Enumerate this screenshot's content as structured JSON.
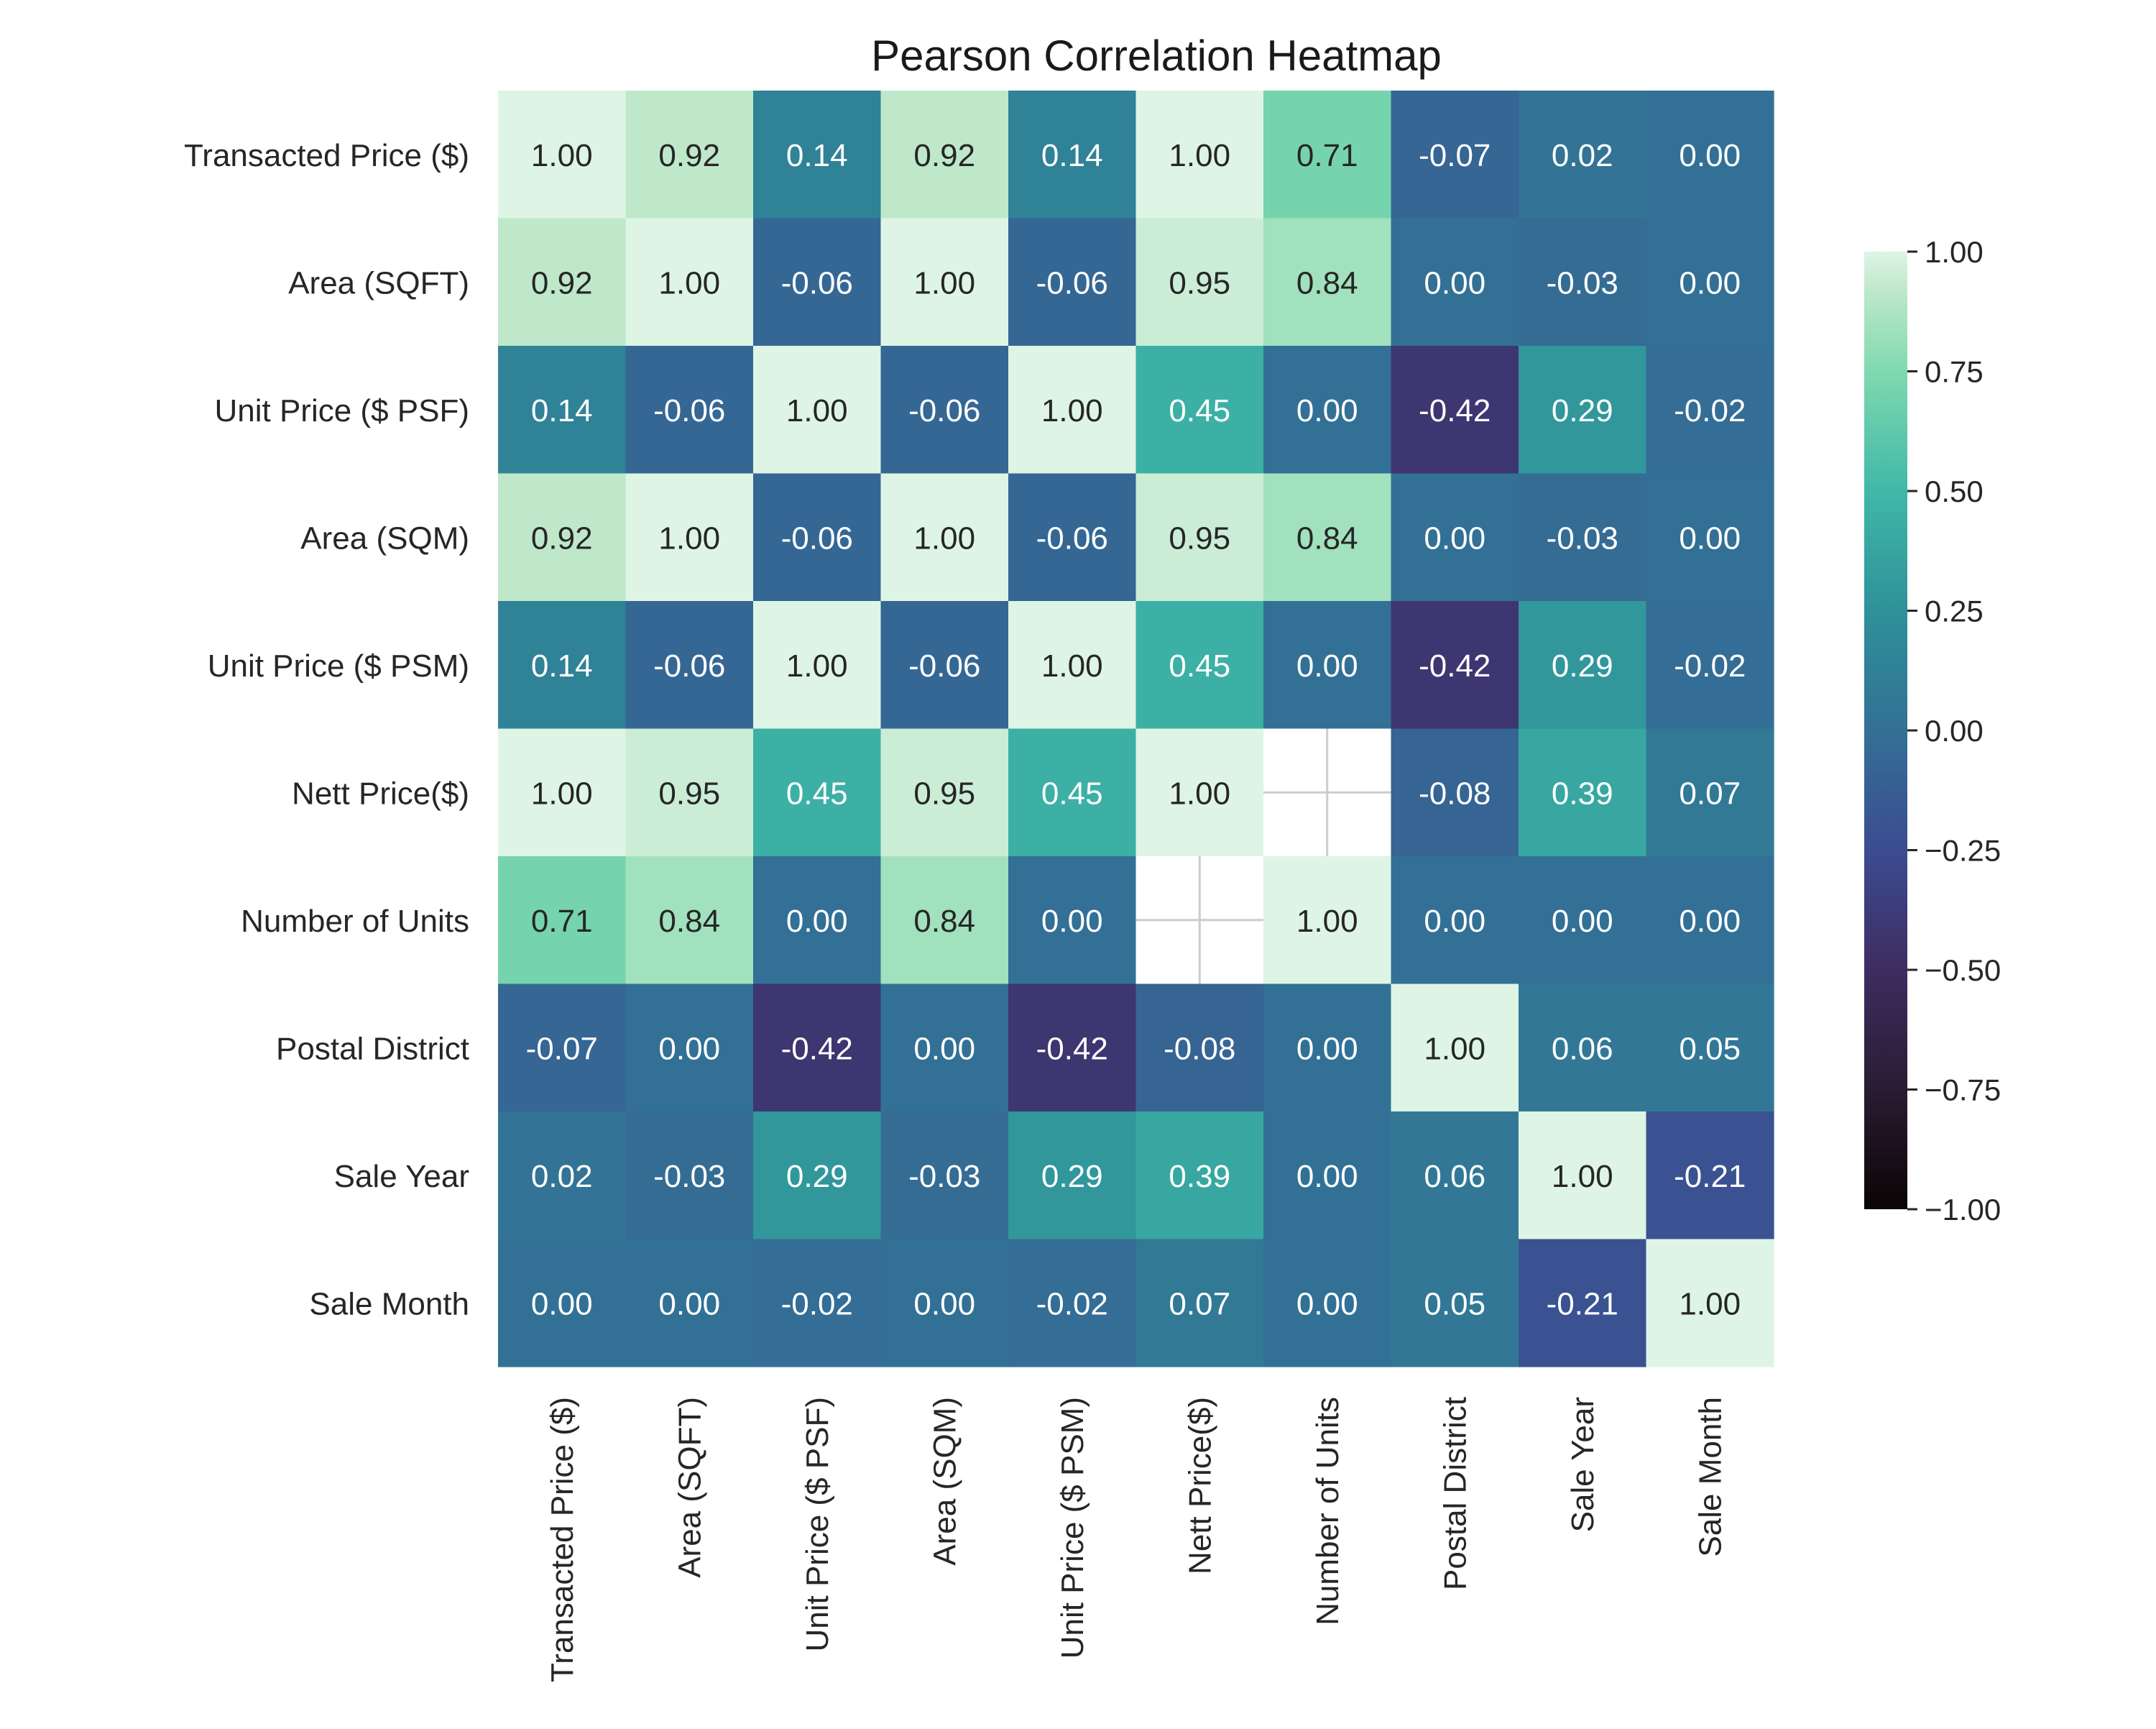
{
  "chart_data": {
    "type": "heatmap",
    "title": "Pearson Correlation Heatmap",
    "row_labels": [
      "Transacted Price ($)",
      "Area (SQFT)",
      "Unit Price ($ PSF)",
      "Area (SQM)",
      "Unit Price ($ PSM)",
      "Nett Price($)",
      "Number of Units",
      "Postal District",
      "Sale Year",
      "Sale Month"
    ],
    "col_labels": [
      "Transacted Price ($)",
      "Area (SQFT)",
      "Unit Price ($ PSF)",
      "Area (SQM)",
      "Unit Price ($ PSM)",
      "Nett Price($)",
      "Number of Units",
      "Postal District",
      "Sale Year",
      "Sale Month"
    ],
    "values": [
      [
        1.0,
        0.92,
        0.14,
        0.92,
        0.14,
        1.0,
        0.71,
        -0.07,
        0.02,
        -0.0
      ],
      [
        0.92,
        1.0,
        -0.06,
        1.0,
        -0.06,
        0.95,
        0.84,
        0.0,
        -0.03,
        0.0
      ],
      [
        0.14,
        -0.06,
        1.0,
        -0.06,
        1.0,
        0.45,
        0.0,
        -0.42,
        0.29,
        -0.02
      ],
      [
        0.92,
        1.0,
        -0.06,
        1.0,
        -0.06,
        0.95,
        0.84,
        0.0,
        -0.03,
        0.0
      ],
      [
        0.14,
        -0.06,
        1.0,
        -0.06,
        1.0,
        0.45,
        0.0,
        -0.42,
        0.29,
        -0.02
      ],
      [
        1.0,
        0.95,
        0.45,
        0.95,
        0.45,
        1.0,
        null,
        -0.08,
        0.39,
        0.07
      ],
      [
        0.71,
        0.84,
        0.0,
        0.84,
        0.0,
        null,
        1.0,
        0.0,
        -0.0,
        0.0
      ],
      [
        -0.07,
        0.0,
        -0.42,
        0.0,
        -0.42,
        -0.08,
        0.0,
        1.0,
        0.06,
        0.05
      ],
      [
        0.02,
        -0.03,
        0.29,
        -0.03,
        0.29,
        0.39,
        -0.0,
        0.06,
        1.0,
        -0.21
      ],
      [
        -0.0,
        0.0,
        -0.02,
        0.0,
        -0.02,
        0.07,
        0.0,
        0.05,
        -0.21,
        1.0
      ]
    ],
    "value_format": "2 decimals",
    "colorbar": {
      "range": [
        -1.0,
        1.0
      ],
      "ticks": [
        1.0,
        0.75,
        0.5,
        0.25,
        0.0,
        -0.25,
        -0.5,
        -0.75,
        -1.0
      ],
      "tick_labels": [
        "1.00",
        "0.75",
        "0.50",
        "0.25",
        "0.00",
        "−0.25",
        "−0.50",
        "−0.75",
        "−1.00"
      ],
      "colormap": "mako",
      "color_stops": [
        {
          "v": -1.0,
          "color": "#0b0405"
        },
        {
          "v": -0.75,
          "color": "#2a1c32"
        },
        {
          "v": -0.5,
          "color": "#3e2c61"
        },
        {
          "v": -0.25,
          "color": "#3b4c90"
        },
        {
          "v": 0.0,
          "color": "#337095"
        },
        {
          "v": 0.25,
          "color": "#2e9199"
        },
        {
          "v": 0.5,
          "color": "#40b8a8"
        },
        {
          "v": 0.75,
          "color": "#7fd9af"
        },
        {
          "v": 0.92,
          "color": "#bfe8cb"
        },
        {
          "v": 1.0,
          "color": "#def5e5"
        }
      ]
    },
    "missing_cell_style": "blank white with grid"
  }
}
